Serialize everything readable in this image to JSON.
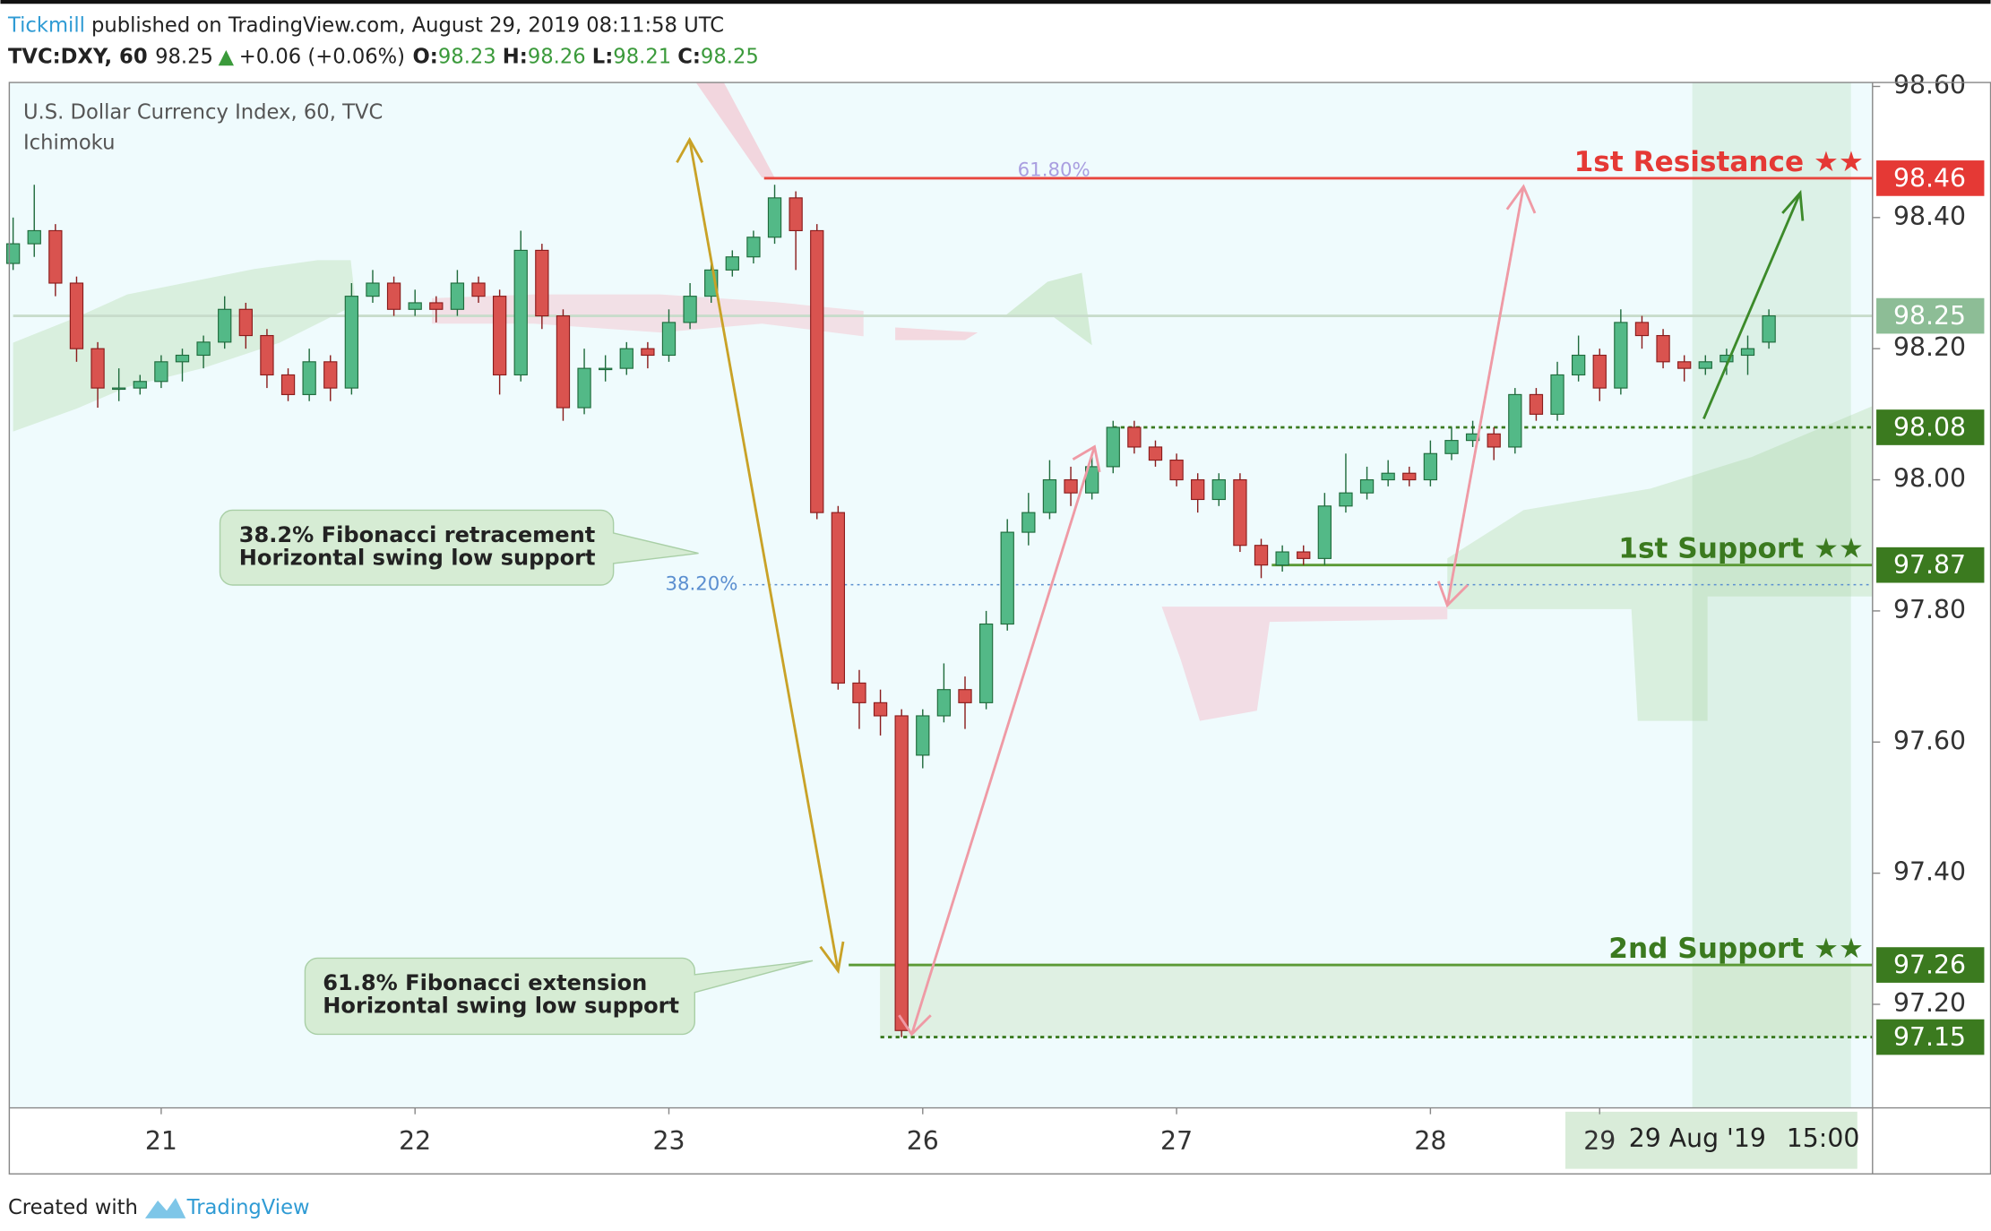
{
  "header": {
    "brand": "Tickmill",
    "published": "published on TradingView.com, August 29, 2019 08:11:58 UTC",
    "symbol": "TVC:DXY, 60",
    "last": "98.25",
    "arrow": "▲",
    "change": "+0.06 (+0.06%)",
    "o_label": "O:",
    "open": "98.23",
    "h_label": "H:",
    "high": "98.26",
    "l_label": "L:",
    "low": "98.21",
    "c_label": "C:",
    "close": "98.25"
  },
  "footer": {
    "created": "Created with",
    "brand": "TradingView"
  },
  "annotations": [
    {
      "lines": [
        "38.2% Fibonacci retracement",
        "Horizontal swing low support"
      ]
    },
    {
      "lines": [
        "61.8% Fibonacci extension",
        "Horizontal swing low support"
      ]
    }
  ],
  "chart_data": {
    "type": "candlestick",
    "legend": {
      "title": "U.S. Dollar Currency Index, 60, TVC",
      "indicator": "Ichimoku"
    },
    "up_color": "#53b987",
    "down_color": "#d9534f",
    "up_border": "#1f6b3c",
    "down_border": "#8a1c1c",
    "x": [
      0,
      2,
      4,
      6,
      8,
      10,
      12,
      14,
      16,
      18,
      20,
      22,
      24,
      26,
      28,
      30,
      32,
      34,
      36,
      38,
      40,
      42,
      44,
      46,
      48,
      50,
      52,
      54,
      56,
      58,
      60,
      62,
      64,
      66,
      68,
      70,
      72,
      74,
      76,
      78,
      80,
      82,
      84,
      86,
      88,
      90,
      92,
      94,
      96,
      98,
      100,
      102,
      104,
      106,
      108,
      110,
      112,
      114,
      116,
      118,
      120,
      122,
      124,
      126,
      128,
      130,
      132,
      134,
      136,
      138,
      140,
      142,
      144,
      146,
      148,
      150,
      152,
      154,
      156,
      158,
      160,
      162,
      164,
      166
    ],
    "open": [
      98.33,
      98.36,
      98.38,
      98.3,
      98.2,
      98.14,
      98.14,
      98.15,
      98.18,
      98.19,
      98.21,
      98.26,
      98.22,
      98.16,
      98.13,
      98.18,
      98.14,
      98.28,
      98.3,
      98.26,
      98.27,
      98.26,
      98.3,
      98.28,
      98.16,
      98.35,
      98.25,
      98.11,
      98.17,
      98.17,
      98.2,
      98.19,
      98.24,
      98.28,
      98.32,
      98.34,
      98.37,
      98.43,
      98.38,
      97.95,
      97.69,
      97.66,
      97.64,
      97.58,
      97.64,
      97.68,
      97.66,
      97.78,
      97.92,
      97.95,
      98.0,
      97.98,
      98.02,
      98.08,
      98.05,
      98.03,
      98.0,
      97.97,
      98.0,
      97.9,
      97.87,
      97.89,
      97.88,
      97.96,
      97.98,
      98.0,
      98.01,
      98.0,
      98.04,
      98.06,
      98.07,
      98.05,
      98.13,
      98.1,
      98.16,
      98.19,
      98.14,
      98.24,
      98.22,
      98.18,
      98.17,
      98.18,
      98.19,
      98.21
    ],
    "high": [
      98.4,
      98.45,
      98.39,
      98.31,
      98.21,
      98.17,
      98.16,
      98.19,
      98.2,
      98.22,
      98.28,
      98.27,
      98.23,
      98.17,
      98.2,
      98.19,
      98.3,
      98.32,
      98.31,
      98.29,
      98.28,
      98.32,
      98.31,
      98.29,
      98.38,
      98.36,
      98.26,
      98.2,
      98.19,
      98.21,
      98.21,
      98.26,
      98.3,
      98.33,
      98.35,
      98.38,
      98.45,
      98.44,
      98.39,
      97.96,
      97.71,
      97.68,
      97.65,
      97.65,
      97.72,
      97.7,
      97.8,
      97.94,
      97.98,
      98.03,
      98.02,
      98.04,
      98.09,
      98.09,
      98.06,
      98.04,
      98.01,
      98.01,
      98.01,
      97.91,
      97.9,
      97.9,
      97.98,
      98.04,
      98.02,
      98.03,
      98.02,
      98.06,
      98.08,
      98.09,
      98.08,
      98.14,
      98.14,
      98.18,
      98.22,
      98.2,
      98.26,
      98.25,
      98.23,
      98.19,
      98.19,
      98.2,
      98.22,
      98.26
    ],
    "low": [
      98.32,
      98.34,
      98.28,
      98.18,
      98.11,
      98.12,
      98.13,
      98.14,
      98.15,
      98.17,
      98.2,
      98.2,
      98.14,
      98.12,
      98.12,
      98.12,
      98.13,
      98.27,
      98.25,
      98.25,
      98.24,
      98.25,
      98.27,
      98.13,
      98.15,
      98.23,
      98.09,
      98.1,
      98.15,
      98.16,
      98.17,
      98.18,
      98.23,
      98.27,
      98.31,
      98.33,
      98.36,
      98.32,
      97.94,
      97.68,
      97.62,
      97.61,
      97.15,
      97.56,
      97.63,
      97.62,
      97.65,
      97.77,
      97.9,
      97.94,
      97.96,
      97.97,
      98.01,
      98.04,
      98.02,
      97.99,
      97.95,
      97.96,
      97.89,
      97.85,
      97.86,
      97.87,
      97.87,
      97.95,
      97.97,
      97.99,
      97.99,
      97.99,
      98.03,
      98.05,
      98.03,
      98.04,
      98.09,
      98.09,
      98.15,
      98.12,
      98.13,
      98.2,
      98.17,
      98.15,
      98.16,
      98.16,
      98.16,
      98.2
    ],
    "close": [
      98.36,
      98.38,
      98.3,
      98.2,
      98.14,
      98.14,
      98.15,
      98.18,
      98.19,
      98.21,
      98.26,
      98.22,
      98.16,
      98.13,
      98.18,
      98.14,
      98.28,
      98.3,
      98.26,
      98.27,
      98.26,
      98.3,
      98.28,
      98.16,
      98.35,
      98.25,
      98.11,
      98.17,
      98.17,
      98.2,
      98.19,
      98.24,
      98.28,
      98.32,
      98.34,
      98.37,
      98.43,
      98.38,
      97.95,
      97.69,
      97.66,
      97.64,
      97.16,
      97.64,
      97.68,
      97.66,
      97.78,
      97.92,
      97.95,
      98.0,
      97.98,
      98.02,
      98.08,
      98.05,
      98.03,
      98.0,
      97.97,
      98.0,
      97.9,
      97.87,
      97.89,
      97.88,
      97.96,
      97.98,
      98.0,
      98.01,
      98.0,
      98.04,
      98.06,
      98.07,
      98.05,
      98.13,
      98.1,
      98.16,
      98.19,
      98.14,
      98.24,
      98.22,
      98.18,
      98.17,
      98.18,
      98.19,
      98.2,
      98.25
    ],
    "xlim": [
      -0.36,
      175.8
    ],
    "xticks": [
      {
        "value": 14,
        "label": "21"
      },
      {
        "value": 38,
        "label": "22"
      },
      {
        "value": 62,
        "label": "23"
      },
      {
        "value": 86,
        "label": "26"
      },
      {
        "value": 110,
        "label": "27"
      },
      {
        "value": 134,
        "label": "28"
      },
      {
        "value": 150,
        "label": "29"
      }
    ],
    "ylim": [
      97.042,
      98.606
    ],
    "yticks": [
      {
        "value": 97.2,
        "label": "97.20"
      },
      {
        "value": 97.4,
        "label": "97.40"
      },
      {
        "value": 97.6,
        "label": "97.60"
      },
      {
        "value": 97.8,
        "label": "97.80"
      },
      {
        "value": 98.0,
        "label": "98.00"
      },
      {
        "value": 98.2,
        "label": "98.20"
      },
      {
        "value": 98.4,
        "label": "98.40"
      },
      {
        "value": 98.6,
        "label": "98.60"
      }
    ],
    "grid": false,
    "crosshair": {
      "date": "29 Aug '19",
      "time": "15:00"
    },
    "levels": [
      {
        "value": 98.25,
        "color": "#8dbd96",
        "line_color": "#c8dccb",
        "from": 0,
        "style": "solid"
      },
      {
        "label": "1st Resistance ★★",
        "value": 98.46,
        "color": "#e53935",
        "line_color": "#e8463e",
        "from": 71,
        "style": "solid"
      },
      {
        "value": 98.08,
        "color": "#3b7a1f",
        "line_color": "#3b7a1f",
        "from": 104,
        "style": "dotted"
      },
      {
        "label": "1st Support ★★",
        "value": 97.87,
        "color": "#3b7a1f",
        "line_color": "#5b9a35",
        "from": 119,
        "style": "solid"
      },
      {
        "label": "2nd Support ★★",
        "value": 97.26,
        "color": "#3b7a1f",
        "line_color": "#5b9a35",
        "from": 79,
        "style": "solid"
      },
      {
        "value": 97.15,
        "color": "#3b7a1f",
        "line_color": "#3b7a1f",
        "from": 82,
        "style": "dotted"
      }
    ],
    "fib": [
      {
        "label": "61.80%",
        "value": 98.46,
        "color": "#a99ee0"
      },
      {
        "label": "38.20%",
        "value": 97.84,
        "color": "#5b8fd0",
        "from": 69
      }
    ]
  }
}
